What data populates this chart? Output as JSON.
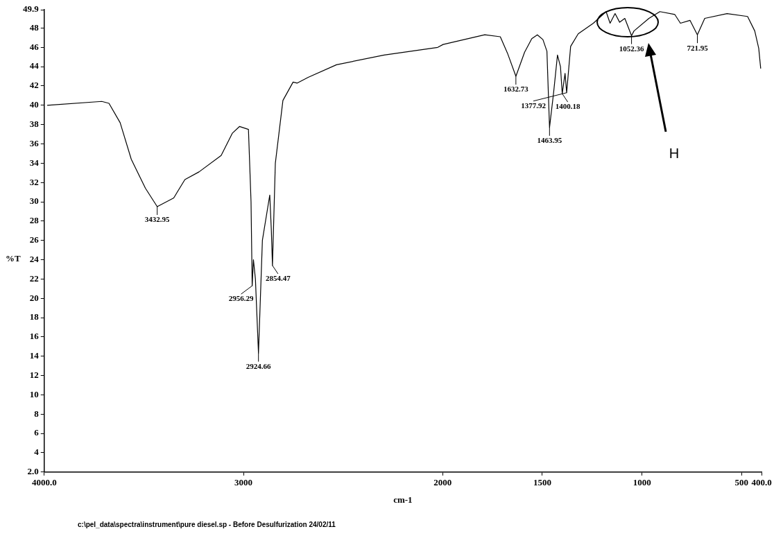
{
  "chart_data": {
    "type": "line",
    "xlabel": "cm-1",
    "ylabel": "%T",
    "color": "#000000",
    "grid": false,
    "legend": false,
    "xlim": [
      4000,
      400
    ],
    "ylim": [
      2,
      49.9
    ],
    "xticks": [
      {
        "value": 4000,
        "label": "4000.0"
      },
      3000,
      2000,
      1500,
      1000,
      500,
      {
        "value": 400,
        "label": "400.0"
      }
    ],
    "yticks": [
      {
        "value": 2,
        "label": "2.0"
      },
      4,
      6,
      8,
      10,
      12,
      14,
      16,
      18,
      20,
      22,
      24,
      26,
      28,
      30,
      32,
      34,
      36,
      38,
      40,
      42,
      44,
      46,
      48,
      {
        "value": 49.9,
        "label": "49.9"
      }
    ],
    "x": [
      3985,
      3711,
      3675,
      3619,
      3563,
      3492,
      3432.95,
      3350,
      3294,
      3223,
      3112,
      3056,
      3020,
      2975,
      2962,
      2956.29,
      2950,
      2940,
      2924.66,
      2905,
      2868,
      2860,
      2854.47,
      2840,
      2802,
      2751,
      2730,
      2675,
      2533,
      2294,
      2025,
      1998,
      1789,
      1711,
      1675,
      1632.73,
      1589,
      1553,
      1525,
      1497,
      1477,
      1463.95,
      1444,
      1424,
      1409,
      1400.18,
      1386,
      1377.92,
      1358,
      1320,
      1244,
      1180,
      1160,
      1135,
      1112,
      1086,
      1052.36,
      1040,
      965,
      910,
      835,
      807,
      759,
      721.95,
      685,
      573,
      470,
      434,
      414,
      404
    ],
    "values": [
      40.0,
      40.4,
      40.2,
      38.2,
      34.4,
      31.4,
      29.5,
      30.4,
      32.3,
      33.1,
      34.8,
      37.1,
      37.8,
      37.5,
      30,
      21.3,
      24.0,
      22,
      14.3,
      26,
      30.7,
      27,
      23.4,
      34,
      40.5,
      42.4,
      42.3,
      42.9,
      44.2,
      45.2,
      46.0,
      46.3,
      47.3,
      47.1,
      45.4,
      43.0,
      45.5,
      46.9,
      47.3,
      46.8,
      45.6,
      37.7,
      41.2,
      45.2,
      44.0,
      41.2,
      43.3,
      41.3,
      46.1,
      47.4,
      48.5,
      49.7,
      48.5,
      49.5,
      48.6,
      49.0,
      47.2,
      47.7,
      49.0,
      49.7,
      49.4,
      48.5,
      48.8,
      47.3,
      49.0,
      49.5,
      49.2,
      47.7,
      45.9,
      43.8
    ],
    "annotations": [
      {
        "text": "3432.95",
        "x": 3432.95,
        "y": 29.5
      },
      {
        "text": "2956.29",
        "x": 2956.29,
        "y": 21.3
      },
      {
        "text": "2924.66",
        "x": 2924.66,
        "y": 14.3
      },
      {
        "text": "2854.47",
        "x": 2854.47,
        "y": 23.4
      },
      {
        "text": "1632.73",
        "x": 1632.73,
        "y": 43.0
      },
      {
        "text": "1463.95",
        "x": 1463.95,
        "y": 37.7
      },
      {
        "text": "1400.18",
        "x": 1400.18,
        "y": 41.2
      },
      {
        "text": "1377.92",
        "x": 1377.92,
        "y": 41.3
      },
      {
        "text": "1052.36",
        "x": 1052.36,
        "y": 47.2
      },
      {
        "text": "721.95",
        "x": 721.95,
        "y": 47.3
      },
      "H",
      "c:\\pel_data\\spectra\\instrument\\pure diesel.sp - Before Desulfurization 24/02/11"
    ]
  }
}
